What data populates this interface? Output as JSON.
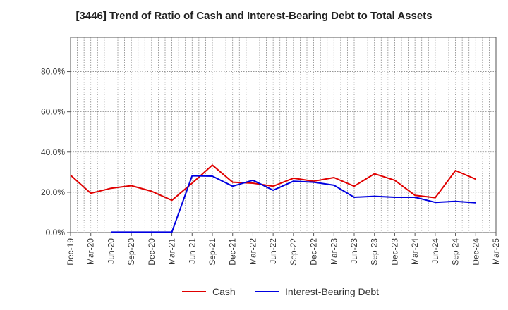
{
  "chart_data": {
    "type": "line",
    "title": "[3446]  Trend of Ratio of Cash and Interest-Bearing Debt to Total Assets",
    "xlabel": "",
    "ylabel": "",
    "ylim": [
      0,
      97
    ],
    "y_ticks": [
      "0.0%",
      "20.0%",
      "40.0%",
      "60.0%",
      "80.0%"
    ],
    "y_tick_values": [
      0,
      20,
      40,
      60,
      80
    ],
    "x_tick_labels": [
      "Dec-19",
      "Mar-20",
      "Jun-20",
      "Sep-20",
      "Dec-20",
      "Mar-21",
      "Jun-21",
      "Sep-21",
      "Dec-21",
      "Mar-22",
      "Jun-22",
      "Sep-22",
      "Dec-22",
      "Mar-23",
      "Jun-23",
      "Sep-23",
      "Dec-23",
      "Mar-24",
      "Jun-24",
      "Sep-24",
      "Dec-24",
      "Mar-25"
    ],
    "grid": true,
    "legend_position": "bottom",
    "series": [
      {
        "name": "Cash",
        "color": "#e00000",
        "values": [
          28.5,
          19.5,
          22.0,
          23.3,
          20.5,
          16.0,
          24.5,
          33.5,
          25.0,
          24.5,
          23.0,
          27.0,
          25.5,
          27.3,
          23.0,
          29.2,
          26.0,
          18.5,
          17.3,
          30.8,
          26.5,
          null
        ]
      },
      {
        "name": "Interest-Bearing Debt",
        "color": "#0000e0",
        "values": [
          null,
          null,
          0.2,
          0.2,
          0.2,
          0.2,
          28.2,
          28.0,
          23.0,
          26.0,
          21.0,
          25.5,
          25.0,
          23.5,
          17.5,
          18.0,
          17.5,
          17.5,
          15.0,
          15.5,
          14.8,
          null
        ]
      }
    ]
  }
}
